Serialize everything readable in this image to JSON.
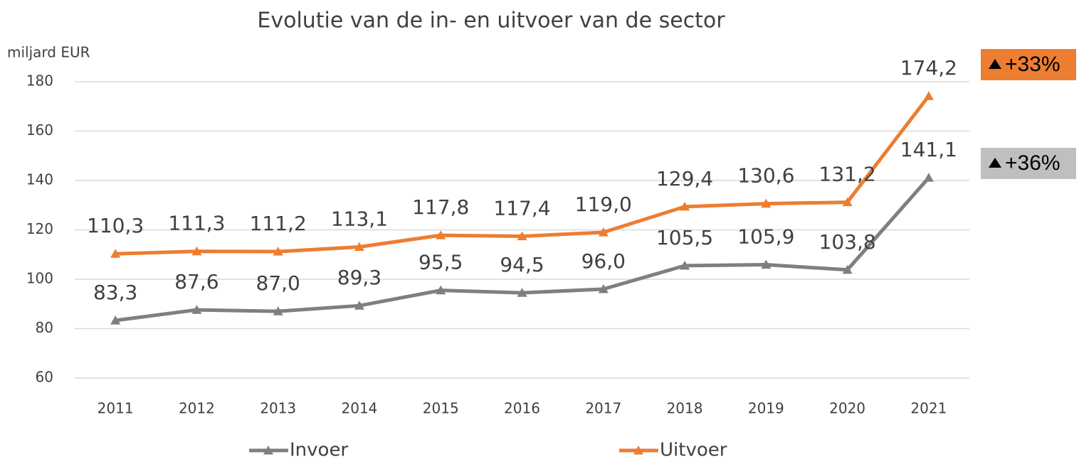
{
  "chart_data": {
    "type": "line",
    "title": "Evolutie van de in- en uitvoer van de sector",
    "ylabel": "miljard EUR",
    "categories": [
      "2011",
      "2012",
      "2013",
      "2014",
      "2015",
      "2016",
      "2017",
      "2018",
      "2019",
      "2020",
      "2021"
    ],
    "series": [
      {
        "name": "Invoer",
        "color": "#7f7f7f",
        "values": [
          83.3,
          87.6,
          87.0,
          89.3,
          95.5,
          94.5,
          96.0,
          105.5,
          105.9,
          103.8,
          141.1
        ],
        "value_labels": [
          "83,3",
          "87,6",
          "87,0",
          "89,3",
          "95,5",
          "94,5",
          "96,0",
          "105,5",
          "105,9",
          "103,8",
          "141,1"
        ]
      },
      {
        "name": "Uitvoer",
        "color": "#ed7d31",
        "values": [
          110.3,
          111.3,
          111.2,
          113.1,
          117.8,
          117.4,
          119.0,
          129.4,
          130.6,
          131.2,
          174.2
        ],
        "value_labels": [
          "110,3",
          "111,3",
          "111,2",
          "113,1",
          "117,8",
          "117,4",
          "119,0",
          "129,4",
          "130,6",
          "131,2",
          "174,2"
        ]
      }
    ],
    "ylim": [
      60,
      180
    ],
    "yticks": [
      60,
      80,
      100,
      120,
      140,
      160,
      180
    ],
    "grid": true,
    "annotations": [
      {
        "text": "+33%",
        "color": "#ed7d31"
      },
      {
        "text": "+36%",
        "color": "#bfbfbf"
      }
    ]
  }
}
